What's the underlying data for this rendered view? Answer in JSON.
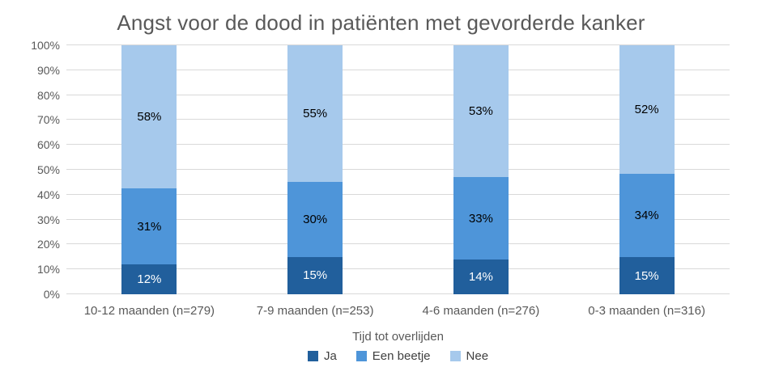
{
  "chart_data": {
    "type": "bar",
    "variant": "stacked-100-percent-column",
    "title": "Angst voor de dood in patiënten met gevorderde kanker",
    "xlabel": "Tijd tot overlijden",
    "ylabel": "",
    "ylim": [
      0,
      100
    ],
    "grid": true,
    "legend_position": "bottom",
    "y_ticks": [
      "0%",
      "10%",
      "20%",
      "30%",
      "40%",
      "50%",
      "60%",
      "70%",
      "80%",
      "90%",
      "100%"
    ],
    "categories": [
      "10-12 maanden (n=279)",
      "7-9 maanden (n=253)",
      "4-6 maanden (n=276)",
      "0-3 maanden (n=316)"
    ],
    "series": [
      {
        "name": "Ja",
        "color": "#215F9C",
        "label_color": "#FFFFFF",
        "values": [
          12,
          15,
          14,
          15
        ]
      },
      {
        "name": "Een beetje",
        "color": "#4E95D9",
        "label_color": "#000000",
        "values": [
          31,
          30,
          33,
          34
        ]
      },
      {
        "name": "Nee",
        "color": "#A6C9EC",
        "label_color": "#000000",
        "values": [
          58,
          55,
          53,
          52
        ]
      }
    ],
    "data_label_suffix": "%"
  },
  "colors": {
    "background": "#FFFFFF",
    "title_text": "#595959",
    "axis_text": "#595959",
    "legend_text": "#404040",
    "gridline": "#D9D9D9"
  }
}
